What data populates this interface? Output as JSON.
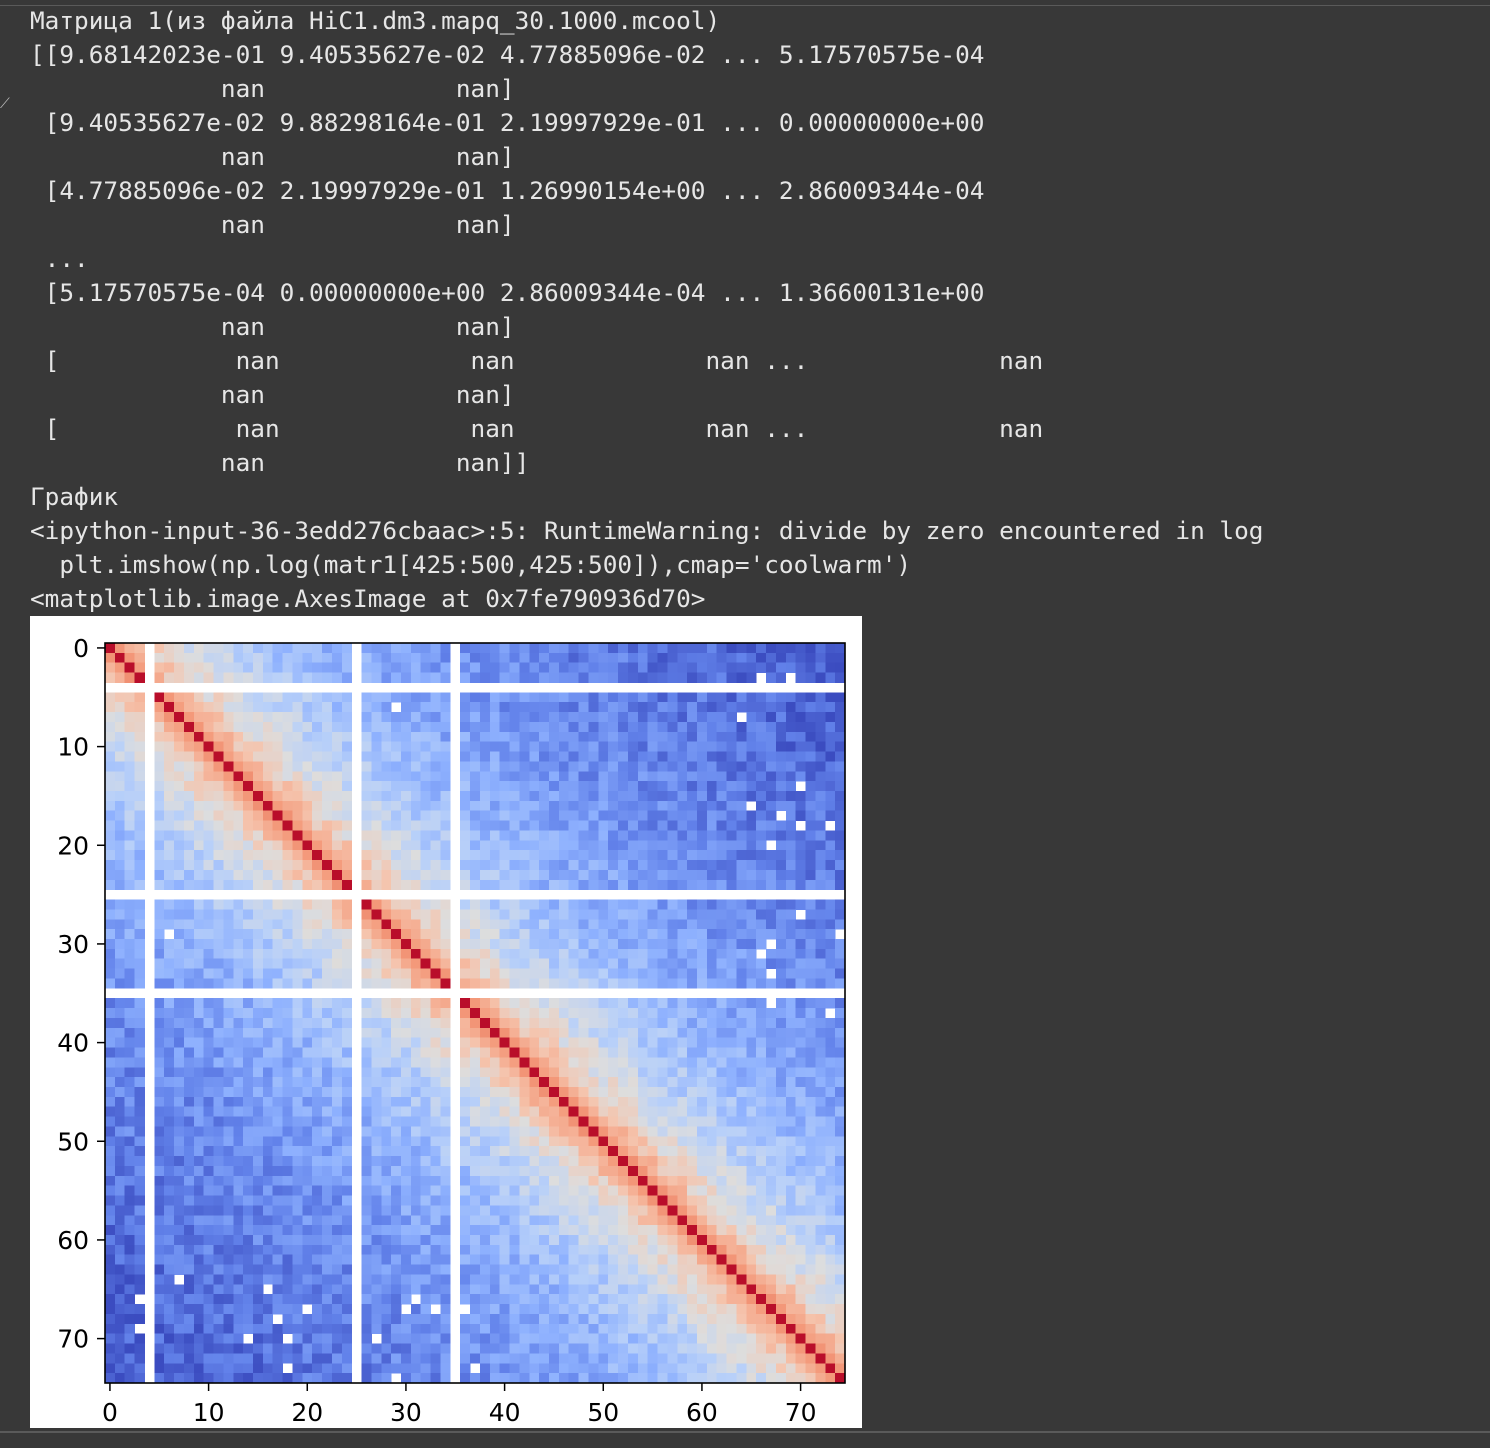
{
  "output": {
    "lines": [
      "Матрица 1(из файла HiC1.dm3.mapq_30.1000.mcool)",
      "[[9.68142023e-01 9.40535627e-02 4.77885096e-02 ... 5.17570575e-04",
      "             nan             nan]",
      " [9.40535627e-02 9.88298164e-01 2.19997929e-01 ... 0.00000000e+00",
      "             nan             nan]",
      " [4.77885096e-02 2.19997929e-01 1.26990154e+00 ... 2.86009344e-04",
      "             nan             nan]",
      " ...",
      " [5.17570575e-04 0.00000000e+00 2.86009344e-04 ... 1.36600131e+00",
      "             nan             nan]",
      " [            nan             nan             nan ...             nan",
      "             nan             nan]",
      " [            nan             nan             nan ...             nan",
      "             nan             nan]]",
      "График",
      "<ipython-input-36-3edd276cbaac>:5: RuntimeWarning: divide by zero encountered in log",
      "  plt.imshow(np.log(matr1[425:500,425:500]),cmap='coolwarm')",
      "<matplotlib.image.AxesImage at 0x7fe790936d70>"
    ]
  },
  "chart_data": {
    "type": "heatmap",
    "colormap": "coolwarm",
    "rows": 75,
    "cols": 75,
    "xlim": [
      -0.5,
      74.5
    ],
    "ylim": [
      74.5,
      -0.5
    ],
    "x_ticks": [
      0,
      10,
      20,
      30,
      40,
      50,
      60,
      70
    ],
    "y_ticks": [
      0,
      10,
      20,
      30,
      40,
      50,
      60,
      70
    ],
    "nan_indices": [
      4,
      25,
      35
    ],
    "diagonal_value": 0.2,
    "offdiag_profile": [
      [
        1,
        -1.5
      ],
      [
        2,
        -2.0
      ],
      [
        3,
        -2.4
      ],
      [
        5,
        -3.0
      ],
      [
        8,
        -3.6
      ],
      [
        12,
        -4.2
      ],
      [
        20,
        -5.0
      ],
      [
        35,
        -5.8
      ],
      [
        74,
        -6.8
      ]
    ],
    "value_range": [
      -7.0,
      0.3
    ],
    "missing_cells": [
      [
        3,
        66
      ],
      [
        3,
        69
      ],
      [
        6,
        29
      ],
      [
        7,
        64
      ],
      [
        14,
        70
      ],
      [
        16,
        65
      ],
      [
        17,
        68
      ],
      [
        18,
        70
      ],
      [
        18,
        73
      ],
      [
        20,
        67
      ],
      [
        27,
        70
      ],
      [
        29,
        6
      ],
      [
        29,
        74
      ],
      [
        30,
        67
      ],
      [
        31,
        66
      ],
      [
        33,
        67
      ],
      [
        36,
        67
      ],
      [
        37,
        73
      ],
      [
        64,
        7
      ],
      [
        65,
        16
      ],
      [
        66,
        3
      ],
      [
        67,
        20
      ],
      [
        67,
        30
      ],
      [
        67,
        33
      ],
      [
        67,
        36
      ],
      [
        68,
        17
      ],
      [
        69,
        3
      ],
      [
        70,
        14
      ],
      [
        70,
        18
      ],
      [
        70,
        27
      ],
      [
        73,
        18
      ],
      [
        74,
        29
      ],
      [
        66,
        31
      ],
      [
        73,
        37
      ]
    ]
  }
}
